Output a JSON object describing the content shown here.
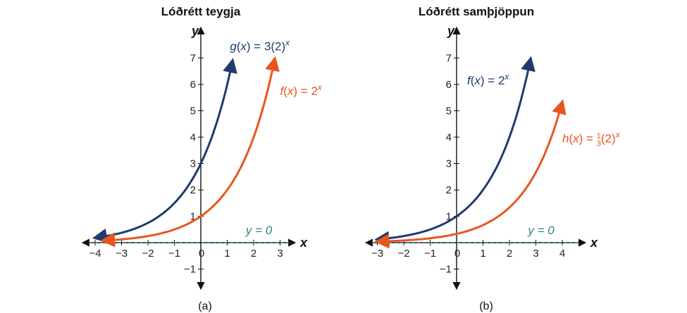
{
  "colors": {
    "navy": "#1f3a6e",
    "orange": "#e8561e",
    "teal": "#2e7f86",
    "axis": "#111111",
    "grid": "#888888"
  },
  "chart_data": [
    {
      "type": "line",
      "title": "Lóðrétt teygja",
      "caption": "(a)",
      "xlabel": "x",
      "ylabel": "y",
      "xlim": [
        -4,
        3
      ],
      "ylim": [
        -1,
        7
      ],
      "xticks": [
        "−4",
        "−3",
        "−2",
        "−1",
        "1",
        "2",
        "3"
      ],
      "yticks": [
        "−1",
        "1",
        "2",
        "3",
        "4",
        "5",
        "6",
        "7"
      ],
      "origin_label": "0",
      "asymptote": {
        "y": 0,
        "label": "y = 0"
      },
      "series": [
        {
          "name": "g(x) = 3(2)ˣ",
          "label_func": "g",
          "label_rhs": "3(2)",
          "label_exp": "x",
          "color": "navy",
          "base": 2,
          "coef": 3,
          "x": [
            -4,
            1.2
          ],
          "label_x": 1.1,
          "label_y": 7.3
        },
        {
          "name": "f(x) = 2ˣ",
          "label_func": "f",
          "label_rhs": "2",
          "label_exp": "x",
          "color": "orange",
          "base": 2,
          "coef": 1,
          "x": [
            -3.7,
            2.8
          ],
          "label_x": 3.0,
          "label_y": 5.6
        }
      ]
    },
    {
      "type": "line",
      "title": "Lóðrétt samþjöppun",
      "caption": "(b)",
      "xlabel": "x",
      "ylabel": "y",
      "xlim": [
        -3,
        4
      ],
      "ylim": [
        -1,
        7
      ],
      "xticks": [
        "−3",
        "−2",
        "−1",
        "1",
        "2",
        "3",
        "4"
      ],
      "yticks": [
        "−1",
        "1",
        "2",
        "3",
        "4",
        "5",
        "6",
        "7"
      ],
      "origin_label": "0",
      "asymptote": {
        "y": 0,
        "label": "y = 0"
      },
      "series": [
        {
          "name": "f(x) = 2ˣ",
          "label_func": "f",
          "label_rhs": "2",
          "label_exp": "x",
          "color": "navy",
          "base": 2,
          "coef": 1,
          "x": [
            -3,
            2.8
          ],
          "label_x": 0.4,
          "label_y": 6.0
        },
        {
          "name": "h(x) = 1/3(2)ˣ",
          "label_func": "h",
          "label_num": "1",
          "label_den": "3",
          "label_rhs": "(2)",
          "label_exp": "x",
          "color": "orange",
          "base": 2,
          "coef": 0.3333,
          "x": [
            -3,
            4.0
          ],
          "label_x": 4.0,
          "label_y": 3.8
        }
      ]
    }
  ]
}
